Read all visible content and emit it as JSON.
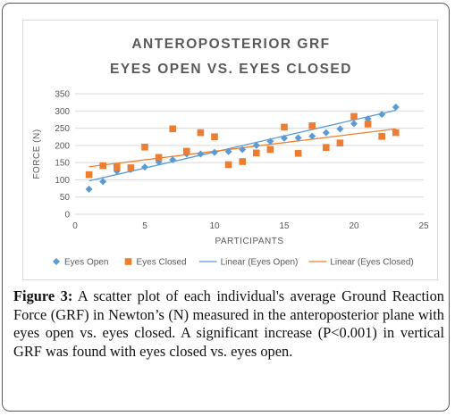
{
  "chart_data": {
    "type": "scatter",
    "title_lines": [
      "ANTEROPOSTERIOR GRF",
      "EYES OPEN VS. EYES CLOSED"
    ],
    "xlabel": "PARTICIPANTS",
    "ylabel": "FORCE (N)",
    "xlim": [
      0,
      25
    ],
    "ylim": [
      0,
      350
    ],
    "xticks": [
      0,
      5,
      10,
      15,
      20,
      25
    ],
    "yticks": [
      0,
      50,
      100,
      150,
      200,
      250,
      300,
      350
    ],
    "grid": true,
    "legend_position": "bottom",
    "series": [
      {
        "name": "Eyes Open",
        "color": "#5b9bd5",
        "marker": "diamond",
        "points": [
          [
            1,
            73
          ],
          [
            2,
            95
          ],
          [
            3,
            125
          ],
          [
            4,
            130
          ],
          [
            5,
            137
          ],
          [
            6,
            152
          ],
          [
            7,
            158
          ],
          [
            8,
            175
          ],
          [
            9,
            175
          ],
          [
            10,
            180
          ],
          [
            11,
            182
          ],
          [
            12,
            188
          ],
          [
            13,
            200
          ],
          [
            14,
            212
          ],
          [
            15,
            221
          ],
          [
            16,
            222
          ],
          [
            17,
            227
          ],
          [
            18,
            237
          ],
          [
            19,
            248
          ],
          [
            20,
            263
          ],
          [
            21,
            277
          ],
          [
            22,
            290
          ],
          [
            23,
            311
          ]
        ]
      },
      {
        "name": "Eyes Closed",
        "color": "#ed7d31",
        "marker": "square",
        "points": [
          [
            1,
            115
          ],
          [
            2,
            141
          ],
          [
            3,
            137
          ],
          [
            4,
            135
          ],
          [
            5,
            195
          ],
          [
            6,
            165
          ],
          [
            7,
            248
          ],
          [
            8,
            183
          ],
          [
            9,
            237
          ],
          [
            10,
            225
          ],
          [
            11,
            144
          ],
          [
            12,
            153
          ],
          [
            13,
            178
          ],
          [
            14,
            188
          ],
          [
            15,
            253
          ],
          [
            16,
            177
          ],
          [
            17,
            257
          ],
          [
            18,
            194
          ],
          [
            19,
            207
          ],
          [
            20,
            284
          ],
          [
            21,
            262
          ],
          [
            22,
            226
          ],
          [
            23,
            237
          ]
        ]
      }
    ],
    "trendlines": [
      {
        "name": "Linear (Eyes Open)",
        "color": "#5b9bd5",
        "endpoints": [
          [
            1,
            97
          ],
          [
            23,
            302
          ]
        ]
      },
      {
        "name": "Linear (Eyes Closed)",
        "color": "#ed7d31",
        "endpoints": [
          [
            1,
            138
          ],
          [
            23,
            248
          ]
        ]
      }
    ],
    "gridline_color": "#d9d9d9",
    "tick_color": "#595959"
  },
  "caption": {
    "figure_label": "Figure 3:",
    "text": " A scatter plot of each individual's average Ground Reaction Force (GRF) in Newton’s (N) measured in the anteroposterior plane with eyes open vs. eyes closed. A significant increase (P<0.001) in vertical GRF was found with eyes closed vs. eyes open."
  }
}
